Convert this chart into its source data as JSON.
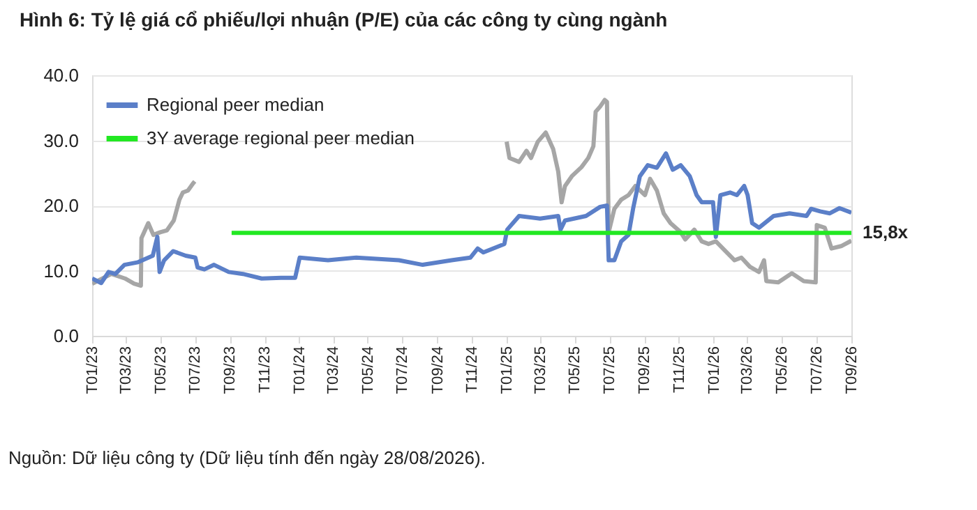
{
  "chart_data": {
    "type": "line",
    "title": "Hình 6: Tỷ lệ giá cổ phiếu/lợi nhuận (P/E) của các công ty cùng ngành",
    "annotations": [
      "Nguồn: Dữ liệu công ty (Dữ liệu tính đến ngày 28/08/2026)."
    ],
    "xlim": [
      "2023-01-01",
      "2026-09-01"
    ],
    "xticks": [
      {
        "value": "2023-01-01",
        "label": "T01/23"
      },
      {
        "value": "2023-03-01",
        "label": "T03/23"
      },
      {
        "value": "2023-05-01",
        "label": "T05/23"
      },
      {
        "value": "2023-07-01",
        "label": "T07/23"
      },
      {
        "value": "2023-09-01",
        "label": "T09/23"
      },
      {
        "value": "2023-11-01",
        "label": "T11/23"
      },
      {
        "value": "2024-01-01",
        "label": "T01/24"
      },
      {
        "value": "2024-03-01",
        "label": "T03/24"
      },
      {
        "value": "2024-05-01",
        "label": "T05/24"
      },
      {
        "value": "2024-07-01",
        "label": "T07/24"
      },
      {
        "value": "2024-09-01",
        "label": "T09/24"
      },
      {
        "value": "2024-11-01",
        "label": "T11/24"
      },
      {
        "value": "2025-01-01",
        "label": "T01/25"
      },
      {
        "value": "2025-03-01",
        "label": "T03/25"
      },
      {
        "value": "2025-05-01",
        "label": "T05/25"
      },
      {
        "value": "2025-07-01",
        "label": "T07/25"
      },
      {
        "value": "2025-09-01",
        "label": "T09/25"
      },
      {
        "value": "2025-11-01",
        "label": "T11/25"
      },
      {
        "value": "2026-01-01",
        "label": "T01/26"
      },
      {
        "value": "2026-03-01",
        "label": "T03/26"
      },
      {
        "value": "2026-05-01",
        "label": "T05/26"
      },
      {
        "value": "2026-07-01",
        "label": "T07/26"
      },
      {
        "value": "2026-09-01",
        "label": "T09/26"
      }
    ],
    "ylim": [
      0,
      40
    ],
    "yticks": [
      {
        "value": 0,
        "label": "0.0"
      },
      {
        "value": 10,
        "label": "10.0"
      },
      {
        "value": 20,
        "label": "20.0"
      },
      {
        "value": 30,
        "label": "30.0"
      },
      {
        "value": 40,
        "label": "40.0"
      }
    ],
    "grid": "y",
    "legend": "top left",
    "marker": "none",
    "line_style": "solid",
    "series": [
      {
        "color": "#a6a6a6",
        "x": [
          "2023-01-01",
          "2023-02-04",
          "2023-02-28",
          "2023-03-16",
          "2023-03-28",
          "2023-03-29",
          "2023-04-10",
          "2023-04-19",
          "2023-05-01",
          "2023-05-13",
          "2023-05-25",
          "2023-06-04",
          "2023-06-10",
          "2023-06-19",
          "2023-06-28",
          "2023-07-01",
          "2024-06-01",
          "2025-01-01",
          "2025-01-06",
          "2025-01-23",
          "2025-02-05",
          "2025-02-13",
          "2025-02-25",
          "2025-03-11",
          "2025-03-24",
          "2025-04-02",
          "2025-04-08",
          "2025-04-14",
          "2025-04-26",
          "2025-05-13",
          "2025-05-25",
          "2025-06-03",
          "2025-06-07",
          "2025-06-15",
          "2025-06-23",
          "2025-06-27",
          "2025-06-30",
          "2025-07-10",
          "2025-07-22",
          "2025-08-04",
          "2025-08-16",
          "2025-09-02",
          "2025-09-11",
          "2025-09-23",
          "2025-10-05",
          "2025-10-17",
          "2025-11-04",
          "2025-11-12",
          "2025-11-28",
          "2025-12-11",
          "2025-12-23",
          "2026-01-05",
          "2026-01-21",
          "2026-02-07",
          "2026-02-19",
          "2026-03-06",
          "2026-03-22",
          "2026-03-31",
          "2026-04-04",
          "2026-04-25",
          "2026-05-19",
          "2026-06-09",
          "2026-06-30",
          "2026-07-02",
          "2026-07-16",
          "2026-07-28",
          "2026-08-15",
          "2026-09-01"
        ],
        "values": [
          8.0,
          9.5,
          8.8,
          8.0,
          7.7,
          15.0,
          17.3,
          15.5,
          15.9,
          16.2,
          17.7,
          20.9,
          22.0,
          22.3,
          23.4,
          23.7,
          null,
          29.8,
          27.3,
          26.7,
          28.4,
          27.3,
          29.8,
          31.2,
          28.7,
          25.2,
          20.5,
          23.0,
          24.5,
          25.9,
          27.3,
          29.1,
          34.4,
          35.2,
          36.2,
          35.9,
          15.9,
          19.5,
          20.9,
          21.6,
          23.0,
          21.6,
          24.1,
          22.3,
          18.8,
          17.3,
          15.9,
          14.8,
          16.3,
          14.5,
          14.1,
          14.5,
          13.1,
          11.6,
          12.0,
          10.6,
          9.8,
          11.6,
          8.4,
          8.2,
          9.6,
          8.4,
          8.2,
          17.0,
          16.6,
          13.4,
          13.8,
          14.6
        ]
      },
      {
        "name": "Regional peer median",
        "color": "#5b7fc8",
        "x": [
          "2023-01-01",
          "2023-01-17",
          "2023-01-30",
          "2023-02-11",
          "2023-02-27",
          "2023-03-23",
          "2023-04-18",
          "2023-04-26",
          "2023-04-30",
          "2023-05-08",
          "2023-05-24",
          "2023-06-15",
          "2023-07-02",
          "2023-07-06",
          "2023-07-18",
          "2023-08-04",
          "2023-08-30",
          "2023-09-24",
          "2023-10-27",
          "2023-11-30",
          "2023-12-25",
          "2024-01-02",
          "2024-02-21",
          "2024-04-11",
          "2024-06-25",
          "2024-08-06",
          "2024-09-26",
          "2024-10-29",
          "2024-11-11",
          "2024-11-21",
          "2024-12-28",
          "2025-01-02",
          "2025-01-23",
          "2025-03-01",
          "2025-04-02",
          "2025-04-06",
          "2025-04-14",
          "2025-05-21",
          "2025-06-15",
          "2025-06-27",
          "2025-06-30",
          "2025-07-10",
          "2025-07-22",
          "2025-08-04",
          "2025-08-12",
          "2025-08-24",
          "2025-09-07",
          "2025-09-23",
          "2025-10-09",
          "2025-10-21",
          "2025-11-04",
          "2025-11-20",
          "2025-12-02",
          "2025-12-11",
          "2025-12-31",
          "2026-01-05",
          "2026-01-13",
          "2026-01-30",
          "2026-02-11",
          "2026-02-24",
          "2026-03-02",
          "2026-03-10",
          "2026-03-22",
          "2026-04-17",
          "2026-05-15",
          "2026-06-14",
          "2026-06-22",
          "2026-07-08",
          "2026-07-25",
          "2026-08-11",
          "2026-09-01"
        ],
        "values": [
          8.8,
          8.1,
          9.8,
          9.5,
          10.9,
          11.3,
          12.3,
          15.2,
          9.8,
          11.6,
          13.0,
          12.3,
          12.0,
          10.5,
          10.2,
          10.9,
          9.8,
          9.5,
          8.8,
          8.9,
          8.9,
          12.0,
          11.6,
          12.0,
          11.6,
          10.9,
          11.6,
          12.0,
          13.4,
          12.8,
          14.1,
          16.3,
          18.4,
          18.0,
          18.4,
          16.3,
          17.7,
          18.4,
          19.8,
          20.0,
          11.6,
          11.6,
          14.5,
          15.5,
          19.5,
          24.5,
          26.2,
          25.8,
          28.0,
          25.5,
          26.2,
          24.5,
          21.6,
          20.5,
          20.5,
          15.2,
          21.6,
          22.0,
          21.6,
          23.0,
          21.6,
          17.3,
          16.6,
          18.4,
          18.8,
          18.4,
          19.5,
          19.1,
          18.8,
          19.6,
          18.9
        ]
      },
      {
        "name": "3Y average regional peer median",
        "color": "#22e822",
        "x": [
          "2023-09-04",
          "2026-09-01"
        ],
        "values": [
          15.8,
          15.8
        ],
        "value_labels": [
          null,
          "15,8x"
        ]
      }
    ]
  }
}
